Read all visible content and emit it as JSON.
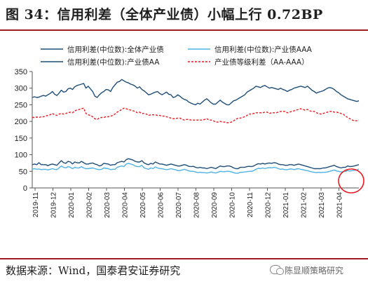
{
  "title": "图 34：信用利差（全体产业债）小幅上行 0.72BP",
  "footer": {
    "source": "数据来源：Wind，国泰君安证券研究",
    "watermark": "陈显顺策略研究",
    "watermark_icon": "wechat-icon"
  },
  "chart_data": {
    "type": "line",
    "legend_position": "top",
    "grid": false,
    "ylim": [
      0,
      350
    ],
    "yticks": [
      0,
      50,
      100,
      150,
      200,
      250,
      300,
      350
    ],
    "x_tick_labels": [
      "2019-11",
      "2019-12",
      "2020-01",
      "2020-02",
      "2020-03",
      "2020-04",
      "2020-05",
      "2020-06",
      "2020-07",
      "2020-08",
      "2020-09",
      "2020-10",
      "2020-11",
      "2020-12",
      "2021-01",
      "2021-02",
      "2021-03",
      "2021-04"
    ],
    "series": [
      {
        "name": "信用利差(中位数):全体产业债",
        "color": "#1f4e79",
        "dash": "solid",
        "values": [
          70,
          72,
          70,
          76,
          70,
          70,
          70,
          67,
          70,
          72,
          70,
          68,
          75,
          82,
          76,
          74,
          80,
          78,
          72,
          78,
          76,
          75,
          80,
          76,
          72,
          72,
          74,
          75,
          72,
          70,
          66,
          68,
          74,
          73,
          72,
          68,
          70,
          70,
          76,
          78,
          80,
          78,
          85,
          88,
          86,
          84,
          80,
          78,
          78,
          82,
          75,
          72,
          70,
          74,
          72,
          78,
          75,
          72,
          72,
          70,
          68,
          70,
          72,
          70,
          68,
          66,
          66,
          68,
          70,
          68,
          65,
          64,
          65,
          62,
          60,
          62,
          60,
          60,
          58,
          60,
          62,
          60,
          58,
          62,
          66,
          64,
          64,
          66,
          66,
          64,
          60,
          58,
          58,
          62,
          62,
          62,
          64,
          65,
          64,
          66,
          70,
          73,
          72,
          74,
          72,
          74,
          75,
          74,
          76,
          75,
          72,
          70,
          70,
          68,
          68,
          70,
          70,
          68,
          70,
          72,
          70,
          68,
          66,
          64,
          62,
          60,
          58,
          58,
          58,
          58,
          60,
          60,
          62,
          64,
          66,
          68,
          64,
          62,
          60,
          62,
          62,
          66,
          64,
          65,
          66,
          68,
          70
        ]
      },
      {
        "name": "信用利差(中位数):产业债AAA",
        "color": "#4fb2e6",
        "dash": "solid",
        "values": [
          56,
          58,
          56,
          57,
          55,
          56,
          56,
          54,
          56,
          58,
          56,
          55,
          60,
          66,
          62,
          60,
          64,
          62,
          58,
          62,
          60,
          60,
          64,
          60,
          58,
          58,
          59,
          60,
          58,
          56,
          55,
          56,
          60,
          59,
          58,
          55,
          56,
          56,
          62,
          64,
          66,
          64,
          72,
          74,
          72,
          70,
          66,
          64,
          64,
          68,
          60,
          58,
          56,
          60,
          58,
          63,
          60,
          58,
          58,
          56,
          55,
          56,
          58,
          56,
          55,
          52,
          52,
          54,
          56,
          54,
          51,
          50,
          50,
          48,
          46,
          47,
          46,
          46,
          45,
          46,
          48,
          46,
          45,
          47,
          50,
          49,
          49,
          50,
          50,
          48,
          46,
          44,
          44,
          47,
          47,
          48,
          49,
          50,
          50,
          52,
          56,
          59,
          58,
          60,
          58,
          60,
          61,
          60,
          62,
          61,
          58,
          56,
          57,
          55,
          55,
          57,
          57,
          55,
          57,
          58,
          56,
          55,
          53,
          52,
          50,
          48,
          47,
          46,
          47,
          46,
          47,
          47,
          48,
          50,
          52,
          54,
          51,
          50,
          48,
          49,
          50,
          52,
          51,
          52,
          53,
          54,
          57
        ]
      },
      {
        "name": "信用利差(中位数):产业债AA",
        "color": "#1f4e79",
        "dash": "solid",
        "values": [
          272,
          274,
          272,
          273,
          276,
          278,
          276,
          280,
          284,
          290,
          282,
          278,
          285,
          294,
          288,
          290,
          298,
          300,
          296,
          304,
          308,
          310,
          312,
          314,
          300,
          306,
          298,
          290,
          276,
          272,
          280,
          286,
          290,
          296,
          295,
          290,
          302,
          310,
          318,
          320,
          326,
          322,
          318,
          316,
          312,
          310,
          306,
          300,
          304,
          296,
          292,
          286,
          280,
          282,
          285,
          288,
          290,
          284,
          280,
          284,
          288,
          282,
          280,
          272,
          274,
          280,
          276,
          270,
          266,
          264,
          258,
          255,
          252,
          250,
          255,
          252,
          258,
          264,
          268,
          262,
          256,
          252,
          252,
          258,
          264,
          258,
          254,
          250,
          250,
          256,
          262,
          264,
          268,
          272,
          276,
          280,
          288,
          292,
          296,
          300,
          306,
          304,
          302,
          306,
          308,
          304,
          300,
          302,
          300,
          298,
          296,
          300,
          296,
          294,
          290,
          294,
          296,
          300,
          302,
          304,
          306,
          304,
          302,
          306,
          300,
          294,
          290,
          285,
          288,
          290,
          292,
          296,
          300,
          302,
          300,
          296,
          290,
          286,
          280,
          276,
          272,
          268,
          266,
          264,
          262,
          260,
          262
        ]
      },
      {
        "name": "产业债等级利差（AA-AAA）",
        "color": "#e8191f",
        "dash": "dashed",
        "values": [
          212,
          212,
          213,
          212,
          214,
          214,
          216,
          218,
          220,
          224,
          220,
          218,
          222,
          224,
          222,
          224,
          226,
          228,
          226,
          232,
          234,
          236,
          238,
          240,
          224,
          220,
          218,
          214,
          208,
          206,
          210,
          212,
          212,
          214,
          214,
          216,
          218,
          222,
          228,
          232,
          236,
          240,
          238,
          236,
          234,
          232,
          230,
          226,
          228,
          224,
          224,
          222,
          218,
          220,
          220,
          220,
          218,
          218,
          216,
          216,
          214,
          212,
          210,
          208,
          208,
          210,
          210,
          206,
          204,
          206,
          206,
          204,
          204,
          204,
          204,
          204,
          204,
          206,
          208,
          204,
          204,
          202,
          198,
          198,
          200,
          198,
          198,
          196,
          196,
          198,
          202,
          206,
          210,
          210,
          212,
          214,
          218,
          222,
          222,
          224,
          226,
          226,
          226,
          226,
          228,
          228,
          224,
          226,
          226,
          226,
          228,
          230,
          230,
          230,
          226,
          228,
          230,
          232,
          234,
          236,
          238,
          236,
          234,
          236,
          232,
          230,
          230,
          226,
          224,
          222,
          224,
          226,
          228,
          230,
          230,
          228,
          228,
          226,
          224,
          222,
          216,
          212,
          208,
          204,
          202,
          202,
          204
        ]
      }
    ]
  }
}
